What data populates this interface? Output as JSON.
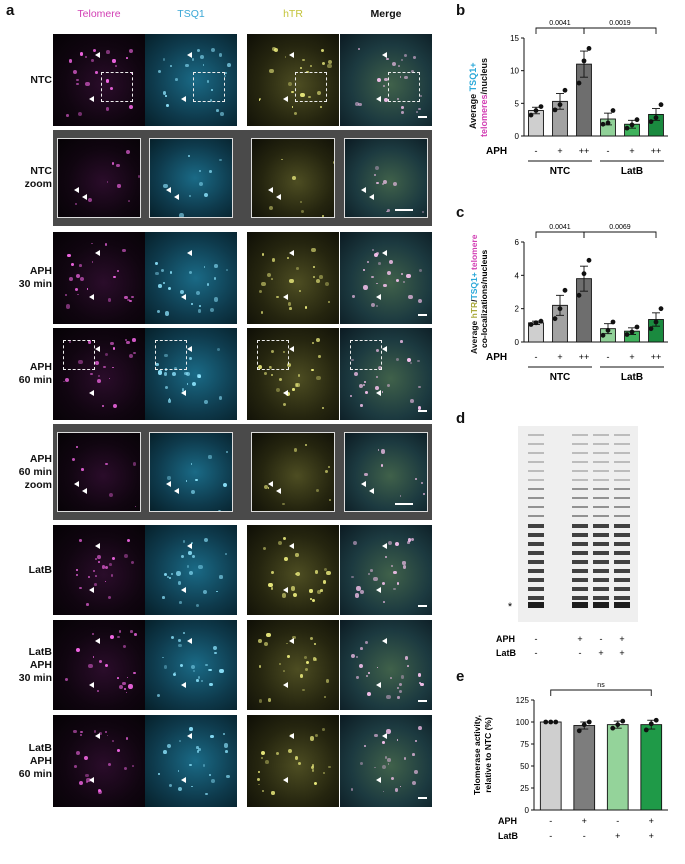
{
  "figure": {
    "panel_letters": [
      "a",
      "b",
      "c",
      "d",
      "e"
    ],
    "channels": [
      {
        "name": "Telomere",
        "color": "#d23fb4"
      },
      {
        "name": "TSQ1",
        "color": "#3aa7d6"
      },
      {
        "name": "hTR",
        "color": "#c4c43a"
      },
      {
        "name": "Merge",
        "color": "#111111"
      }
    ],
    "rows": [
      {
        "label": "NTC",
        "zoom": false
      },
      {
        "label": "NTC\nzoom",
        "zoom": true
      },
      {
        "label": "APH\n30 min",
        "zoom": false
      },
      {
        "label": "APH\n60 min",
        "zoom": false
      },
      {
        "label": "APH\n60 min\nzoom",
        "zoom": true
      },
      {
        "label": "LatB",
        "zoom": false
      },
      {
        "label": "LatB\nAPH\n30 min",
        "zoom": false
      },
      {
        "label": "LatB\nAPH\n60 min",
        "zoom": false
      }
    ]
  },
  "chart_data": [
    {
      "type": "bar",
      "panel": "b",
      "ylabel_parts": [
        {
          "text": "Average ",
          "color": "#111111"
        },
        {
          "text": "TSQ1+",
          "color": "#2aa8d8"
        },
        {
          "text": "telomeres",
          "color": "#d23fb4"
        },
        {
          "text": "/nucleus",
          "color": "#111111"
        }
      ],
      "ylim": [
        0,
        15
      ],
      "yticks": [
        0,
        5,
        10,
        15
      ],
      "categories": [
        "-",
        "+",
        "++",
        "-",
        "+",
        "++"
      ],
      "row_label": "APH",
      "groups": [
        "NTC",
        "LatB"
      ],
      "values": [
        3.9,
        5.3,
        11.0,
        2.6,
        1.8,
        3.3
      ],
      "errors": [
        0.5,
        1.2,
        2.0,
        0.9,
        0.6,
        0.9
      ],
      "points": [
        [
          3.2,
          3.9,
          4.5
        ],
        [
          4.0,
          4.8,
          7.0
        ],
        [
          8.1,
          11.5,
          13.4
        ],
        [
          1.8,
          2.0,
          3.9
        ],
        [
          1.2,
          1.7,
          2.5
        ],
        [
          2.2,
          2.8,
          4.8
        ]
      ],
      "bar_colors": [
        "#cfcfcf",
        "#a2a2a2",
        "#6e6e6e",
        "#90d198",
        "#3fb25c",
        "#1a8a3f"
      ],
      "significance": [
        {
          "from": 0,
          "to": 2,
          "label": "0.0041"
        },
        {
          "from": 2,
          "to": 5,
          "label": "0.0019"
        }
      ]
    },
    {
      "type": "bar",
      "panel": "c",
      "ylabel_parts": [
        {
          "text": "Average ",
          "color": "#111111"
        },
        {
          "text": "hTR",
          "color": "#a8a83a"
        },
        {
          "text": "/",
          "color": "#111111"
        },
        {
          "text": "TSQ1+",
          "color": "#2aa8d8"
        },
        {
          "text": " telomere",
          "color": "#d23fb4"
        }
      ],
      "ylabel_line2": "co-localizations/nucleus",
      "ylim": [
        0,
        6
      ],
      "yticks": [
        0,
        2,
        4,
        6
      ],
      "categories": [
        "-",
        "+",
        "++",
        "-",
        "+",
        "++"
      ],
      "row_label": "APH",
      "groups": [
        "NTC",
        "LatB"
      ],
      "values": [
        1.15,
        2.2,
        3.8,
        0.8,
        0.65,
        1.35
      ],
      "errors": [
        0.1,
        0.6,
        0.75,
        0.3,
        0.2,
        0.4
      ],
      "points": [
        [
          1.05,
          1.15,
          1.25
        ],
        [
          1.4,
          2.0,
          3.1
        ],
        [
          2.8,
          4.1,
          4.9
        ],
        [
          0.4,
          0.7,
          1.2
        ],
        [
          0.45,
          0.6,
          0.9
        ],
        [
          0.8,
          1.2,
          2.0
        ]
      ],
      "bar_colors": [
        "#cfcfcf",
        "#a2a2a2",
        "#6e6e6e",
        "#90d198",
        "#3fb25c",
        "#1a8a3f"
      ],
      "significance": [
        {
          "from": 0,
          "to": 2,
          "label": "0.0041"
        },
        {
          "from": 2,
          "to": 5,
          "label": "0.0069"
        }
      ]
    },
    {
      "type": "bar",
      "panel": "e",
      "ylabel": "Telomerase activity,\nrelative to NTC (%)",
      "ylim": [
        0,
        125
      ],
      "yticks": [
        0,
        25,
        50,
        75,
        100,
        125
      ],
      "categories": [
        "NTC",
        "APH",
        "LatB",
        "APH+LatB"
      ],
      "rows": [
        {
          "label": "APH",
          "marks": [
            "-",
            "+",
            "-",
            "+"
          ]
        },
        {
          "label": "LatB",
          "marks": [
            "-",
            "-",
            "+",
            "+"
          ]
        }
      ],
      "values": [
        100,
        96,
        97,
        97
      ],
      "errors": [
        0,
        4,
        4,
        5
      ],
      "points": [
        [
          100,
          100,
          100
        ],
        [
          90,
          97,
          100
        ],
        [
          93,
          97,
          101
        ],
        [
          91,
          98,
          102
        ]
      ],
      "bar_colors": [
        "#cfcfcf",
        "#7d7d7d",
        "#94d39a",
        "#1f9a48"
      ],
      "significance": [
        {
          "from": 0,
          "to": 3,
          "label": "ns"
        }
      ]
    }
  ],
  "gel": {
    "marker": "*",
    "rows": [
      {
        "label": "APH",
        "marks": [
          "-",
          "+",
          "-",
          "+"
        ]
      },
      {
        "label": "LatB",
        "marks": [
          "-",
          "-",
          "+",
          "+"
        ]
      }
    ]
  }
}
